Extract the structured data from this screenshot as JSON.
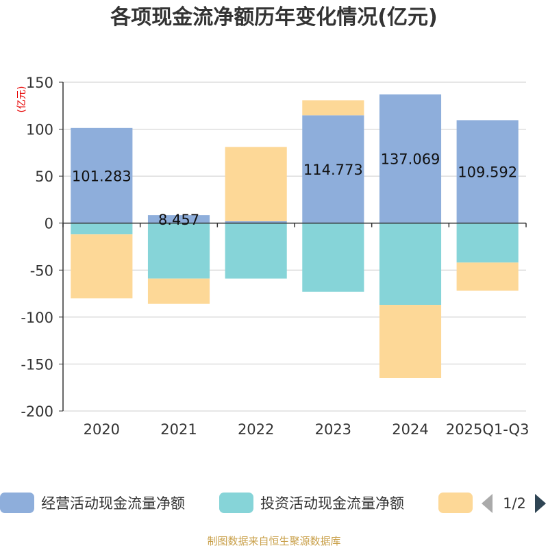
{
  "chart_data": {
    "type": "bar",
    "stacked": true,
    "title": "各项现金流净额历年变化情况(亿元)",
    "ylabel": "(亿元)",
    "ylim": [
      -200,
      150
    ],
    "yticks": [
      150,
      100,
      50,
      0,
      -50,
      -100,
      -150,
      -200
    ],
    "grid": true,
    "categories": [
      "2020",
      "2021",
      "2022",
      "2023",
      "2024",
      "2025Q1-Q3"
    ],
    "series": [
      {
        "name": "经营活动现金流量净额",
        "color": "#8eaedb",
        "values": [
          101.283,
          8.457,
          2.0,
          114.773,
          137.069,
          109.592
        ],
        "labels": [
          "101.283",
          "8.457",
          "",
          "114.773",
          "137.069",
          "109.592"
        ]
      },
      {
        "name": "投资活动现金流量净额",
        "color": "#86d4d8",
        "values": [
          -12,
          -59,
          -59,
          -73,
          -87,
          -42
        ]
      },
      {
        "name": "",
        "color": "#fdd897",
        "values": [
          -68,
          -27,
          79,
          16,
          -78,
          -30
        ]
      }
    ],
    "legend": {
      "position": "bottom",
      "page": "1/2"
    },
    "source": "制图数据来自恒生聚源数据库"
  }
}
